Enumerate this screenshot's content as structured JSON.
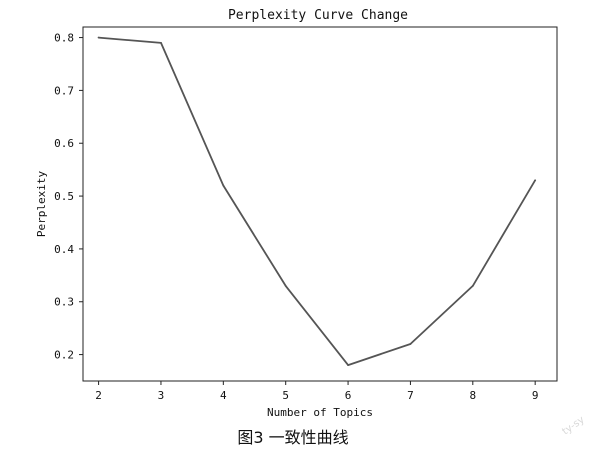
{
  "chart_data": {
    "type": "line",
    "title": "Perplexity Curve Change",
    "xlabel": "Number of Topics",
    "ylabel": "Perplexity",
    "x": [
      2,
      3,
      4,
      5,
      6,
      7,
      8,
      9
    ],
    "xticks": [
      "2",
      "3",
      "4",
      "5",
      "6",
      "7",
      "8",
      "9"
    ],
    "yticks": [
      "0.2",
      "0.3",
      "0.4",
      "0.5",
      "0.6",
      "0.7",
      "0.8"
    ],
    "ylim": [
      0.15,
      0.82
    ],
    "xlim": [
      1.75,
      9.35
    ],
    "grid": false,
    "series": [
      {
        "values": [
          0.8,
          0.79,
          0.52,
          0.33,
          0.18,
          0.22,
          0.33,
          0.53
        ],
        "color": "#555555"
      }
    ]
  },
  "caption": "图3 一致性曲线",
  "watermark": "ty-sy"
}
